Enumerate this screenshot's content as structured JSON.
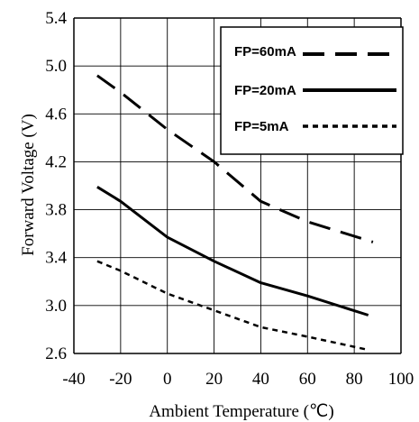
{
  "chart_data": {
    "type": "line",
    "xlabel": "Ambient Temperature (℃)",
    "ylabel": "Forward Voltage (V)",
    "xlim": [
      -40,
      100
    ],
    "ylim": [
      2.6,
      5.4
    ],
    "x_ticks": [
      "-40",
      "-20",
      "0",
      "20",
      "40",
      "60",
      "80",
      "100"
    ],
    "y_ticks": [
      "2.6",
      "3.0",
      "3.4",
      "3.8",
      "4.2",
      "4.6",
      "5.0",
      "5.4"
    ],
    "grid": true,
    "legend_position": "top-right",
    "series": [
      {
        "name": "FP=60mA",
        "style": "long-dash",
        "x": [
          -30,
          -20,
          0,
          20,
          40,
          60,
          88
        ],
        "y": [
          4.92,
          4.78,
          4.47,
          4.2,
          3.87,
          3.7,
          3.53
        ]
      },
      {
        "name": "FP=20mA",
        "style": "solid",
        "x": [
          -30,
          -20,
          0,
          20,
          40,
          60,
          86
        ],
        "y": [
          3.99,
          3.87,
          3.57,
          3.37,
          3.19,
          3.08,
          2.92
        ]
      },
      {
        "name": "FP=5mA",
        "style": "dotted",
        "x": [
          -30,
          -20,
          0,
          20,
          40,
          60,
          86
        ],
        "y": [
          3.37,
          3.29,
          3.1,
          2.96,
          2.82,
          2.74,
          2.63
        ]
      }
    ]
  },
  "style": {
    "line_color": "#000000",
    "grid_color": "#000000",
    "background": "#ffffff"
  }
}
